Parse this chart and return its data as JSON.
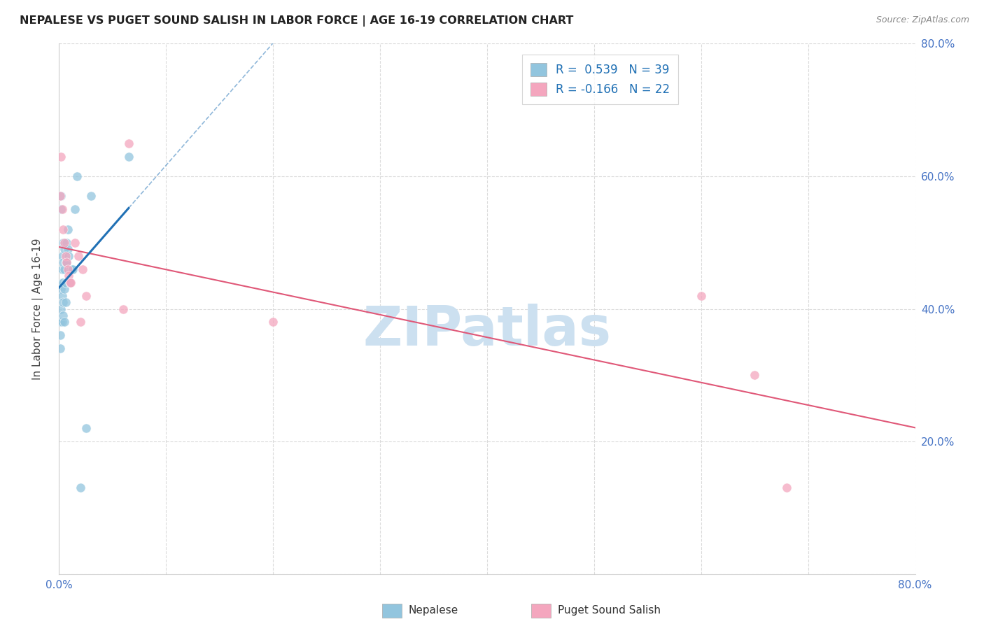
{
  "title": "NEPALESE VS PUGET SOUND SALISH IN LABOR FORCE | AGE 16-19 CORRELATION CHART",
  "source": "Source: ZipAtlas.com",
  "ylabel": "In Labor Force | Age 16-19",
  "xlim": [
    0.0,
    0.8
  ],
  "ylim": [
    0.0,
    0.8
  ],
  "xticks": [
    0.0,
    0.1,
    0.2,
    0.3,
    0.4,
    0.5,
    0.6,
    0.7,
    0.8
  ],
  "yticks": [
    0.0,
    0.2,
    0.4,
    0.6,
    0.8
  ],
  "nepalese_R": 0.539,
  "nepalese_N": 39,
  "salish_R": -0.166,
  "salish_N": 22,
  "nepalese_color": "#92c5de",
  "salish_color": "#f4a6be",
  "nepalese_line_color": "#2171b5",
  "salish_line_color": "#e05878",
  "legend_nepalese_label": "Nepalese",
  "legend_salish_label": "Puget Sound Salish",
  "nepalese_x": [
    0.001,
    0.001,
    0.001,
    0.002,
    0.002,
    0.002,
    0.002,
    0.003,
    0.003,
    0.003,
    0.003,
    0.003,
    0.004,
    0.004,
    0.004,
    0.004,
    0.004,
    0.005,
    0.005,
    0.005,
    0.005,
    0.006,
    0.006,
    0.006,
    0.007,
    0.007,
    0.008,
    0.008,
    0.009,
    0.01,
    0.011,
    0.012,
    0.013,
    0.015,
    0.017,
    0.02,
    0.025,
    0.03,
    0.065
  ],
  "nepalese_y": [
    0.38,
    0.36,
    0.34,
    0.57,
    0.55,
    0.43,
    0.4,
    0.48,
    0.46,
    0.44,
    0.42,
    0.38,
    0.5,
    0.47,
    0.44,
    0.41,
    0.39,
    0.49,
    0.46,
    0.43,
    0.38,
    0.47,
    0.44,
    0.41,
    0.5,
    0.47,
    0.52,
    0.49,
    0.48,
    0.44,
    0.46,
    0.46,
    0.46,
    0.55,
    0.6,
    0.13,
    0.22,
    0.57,
    0.63
  ],
  "salish_x": [
    0.001,
    0.002,
    0.003,
    0.004,
    0.005,
    0.006,
    0.007,
    0.008,
    0.009,
    0.01,
    0.011,
    0.015,
    0.018,
    0.02,
    0.022,
    0.025,
    0.06,
    0.065,
    0.2,
    0.6,
    0.65,
    0.68
  ],
  "salish_y": [
    0.57,
    0.63,
    0.55,
    0.52,
    0.5,
    0.48,
    0.47,
    0.46,
    0.45,
    0.44,
    0.44,
    0.5,
    0.48,
    0.38,
    0.46,
    0.42,
    0.4,
    0.65,
    0.38,
    0.42,
    0.3,
    0.13
  ],
  "background_color": "#ffffff",
  "grid_color": "#d8d8d8",
  "watermark_text": "ZIPatlas",
  "watermark_color": "#cce0f0"
}
